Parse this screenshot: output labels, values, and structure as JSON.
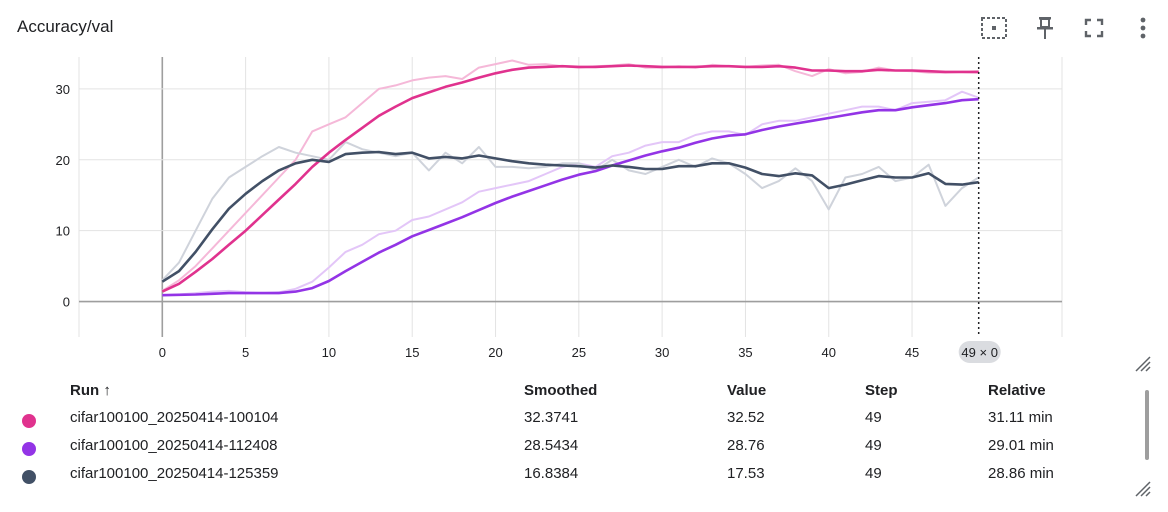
{
  "header": {
    "title": "Accuracy/val",
    "icons": [
      "fit-domain-icon",
      "pin-icon",
      "fullscreen-icon",
      "more-vert-icon"
    ]
  },
  "chart_data": {
    "type": "line",
    "title": "Accuracy/val",
    "xlabel": "",
    "ylabel": "",
    "xlim": [
      -5,
      54
    ],
    "ylim": [
      -5,
      34.5
    ],
    "x_ticks": [
      "0",
      "5",
      "10",
      "15",
      "20",
      "25",
      "30",
      "35",
      "40",
      "45"
    ],
    "y_ticks": [
      "0",
      "10",
      "20",
      "30"
    ],
    "grid": true,
    "hover_step": 49,
    "hover_label": "49 × 0",
    "series": [
      {
        "name": "cifar100100_20250414-100104",
        "color": "#e0328e",
        "raw_color": "#f5b8d8",
        "raw": [
          1.5,
          3.0,
          5.0,
          7.5,
          10.0,
          12.5,
          15.0,
          17.5,
          20.0,
          24.0,
          25.0,
          26.0,
          28.0,
          30.0,
          30.5,
          31.2,
          31.6,
          31.8,
          31.4,
          33.0,
          33.5,
          34.0,
          33.4,
          33.5,
          33.2,
          33.0,
          33.2,
          33.3,
          33.5,
          33.0,
          33.0,
          33.2,
          33.0,
          33.4,
          33.2,
          33.1,
          33.3,
          33.4,
          32.5,
          31.8,
          32.8,
          32.2,
          32.4,
          33.0,
          32.6,
          32.5,
          32.3,
          32.3,
          32.4,
          32.52
        ],
        "smoothed": [
          1.4,
          2.5,
          4.2,
          6.0,
          8.0,
          10.0,
          12.2,
          14.4,
          16.6,
          19.0,
          21.0,
          22.8,
          24.5,
          26.2,
          27.5,
          28.7,
          29.5,
          30.3,
          30.9,
          31.6,
          32.2,
          32.7,
          33.0,
          33.1,
          33.2,
          33.1,
          33.1,
          33.2,
          33.3,
          33.2,
          33.1,
          33.1,
          33.1,
          33.2,
          33.2,
          33.1,
          33.1,
          33.2,
          33.0,
          32.6,
          32.6,
          32.5,
          32.5,
          32.7,
          32.6,
          32.6,
          32.5,
          32.4,
          32.4,
          32.3741
        ]
      },
      {
        "name": "cifar100100_20250414-112408",
        "color": "#9334e6",
        "raw_color": "#e3c6f8",
        "raw": [
          0.9,
          1.0,
          1.2,
          1.4,
          1.5,
          1.3,
          1.2,
          1.3,
          1.8,
          2.8,
          4.8,
          7.0,
          8.0,
          9.5,
          10.0,
          11.5,
          12.0,
          13.0,
          14.0,
          15.5,
          16.0,
          16.5,
          17.0,
          18.0,
          19.0,
          19.5,
          19.0,
          20.5,
          21.0,
          22.0,
          22.5,
          22.5,
          23.5,
          24.0,
          24.0,
          23.5,
          25.0,
          25.5,
          25.5,
          26.0,
          26.5,
          27.0,
          27.5,
          27.5,
          27.0,
          28.0,
          28.2,
          28.4,
          29.6,
          28.76
        ],
        "smoothed": [
          0.9,
          0.95,
          1.0,
          1.1,
          1.2,
          1.2,
          1.2,
          1.2,
          1.4,
          1.9,
          2.9,
          4.3,
          5.6,
          6.9,
          8.0,
          9.2,
          10.1,
          11.0,
          11.9,
          12.9,
          13.9,
          14.8,
          15.6,
          16.4,
          17.2,
          17.9,
          18.4,
          19.2,
          19.9,
          20.6,
          21.2,
          21.7,
          22.4,
          23.0,
          23.4,
          23.6,
          24.2,
          24.7,
          25.1,
          25.5,
          25.9,
          26.3,
          26.7,
          27.0,
          27.0,
          27.4,
          27.7,
          28.0,
          28.4,
          28.5434
        ]
      },
      {
        "name": "cifar100100_20250414-125359",
        "color": "#425066",
        "raw_color": "#cfd3db",
        "raw": [
          3.0,
          5.5,
          10.0,
          14.5,
          17.5,
          19.0,
          20.5,
          21.8,
          21.0,
          20.5,
          20.0,
          22.5,
          21.5,
          21.0,
          20.5,
          21.0,
          18.5,
          21.0,
          19.5,
          21.8,
          19.0,
          19.0,
          18.8,
          19.0,
          19.5,
          19.5,
          18.5,
          20.0,
          18.5,
          18.0,
          19.0,
          20.0,
          19.0,
          20.2,
          19.5,
          18.0,
          16.0,
          17.0,
          18.8,
          17.0,
          13.0,
          17.5,
          18.0,
          19.0,
          17.0,
          17.5,
          19.3,
          13.5,
          16.0,
          17.53
        ],
        "smoothed": [
          2.8,
          4.3,
          7.0,
          10.2,
          13.1,
          15.2,
          17.0,
          18.5,
          19.5,
          20.0,
          19.7,
          20.8,
          21.0,
          21.1,
          20.8,
          21.0,
          20.2,
          20.4,
          20.2,
          20.6,
          20.2,
          19.8,
          19.5,
          19.3,
          19.2,
          19.1,
          18.9,
          19.2,
          19.0,
          18.7,
          18.7,
          19.1,
          19.1,
          19.5,
          19.5,
          18.9,
          18.0,
          17.7,
          18.1,
          17.8,
          16.0,
          16.5,
          17.1,
          17.7,
          17.5,
          17.5,
          18.1,
          16.6,
          16.5,
          16.8384
        ]
      }
    ]
  },
  "table": {
    "columns": [
      "Run ↑",
      "Smoothed",
      "Value",
      "Step",
      "Relative"
    ],
    "rows": [
      {
        "color": "#e0328e",
        "run": "cifar100100_20250414-100104",
        "smoothed": "32.3741",
        "value": "32.52",
        "step": "49",
        "relative": "31.11 min"
      },
      {
        "color": "#9334e6",
        "run": "cifar100100_20250414-112408",
        "smoothed": "28.5434",
        "value": "28.76",
        "step": "49",
        "relative": "29.01 min"
      },
      {
        "color": "#425066",
        "run": "cifar100100_20250414-125359",
        "smoothed": "16.8384",
        "value": "17.53",
        "step": "49",
        "relative": "28.86 min"
      }
    ]
  }
}
